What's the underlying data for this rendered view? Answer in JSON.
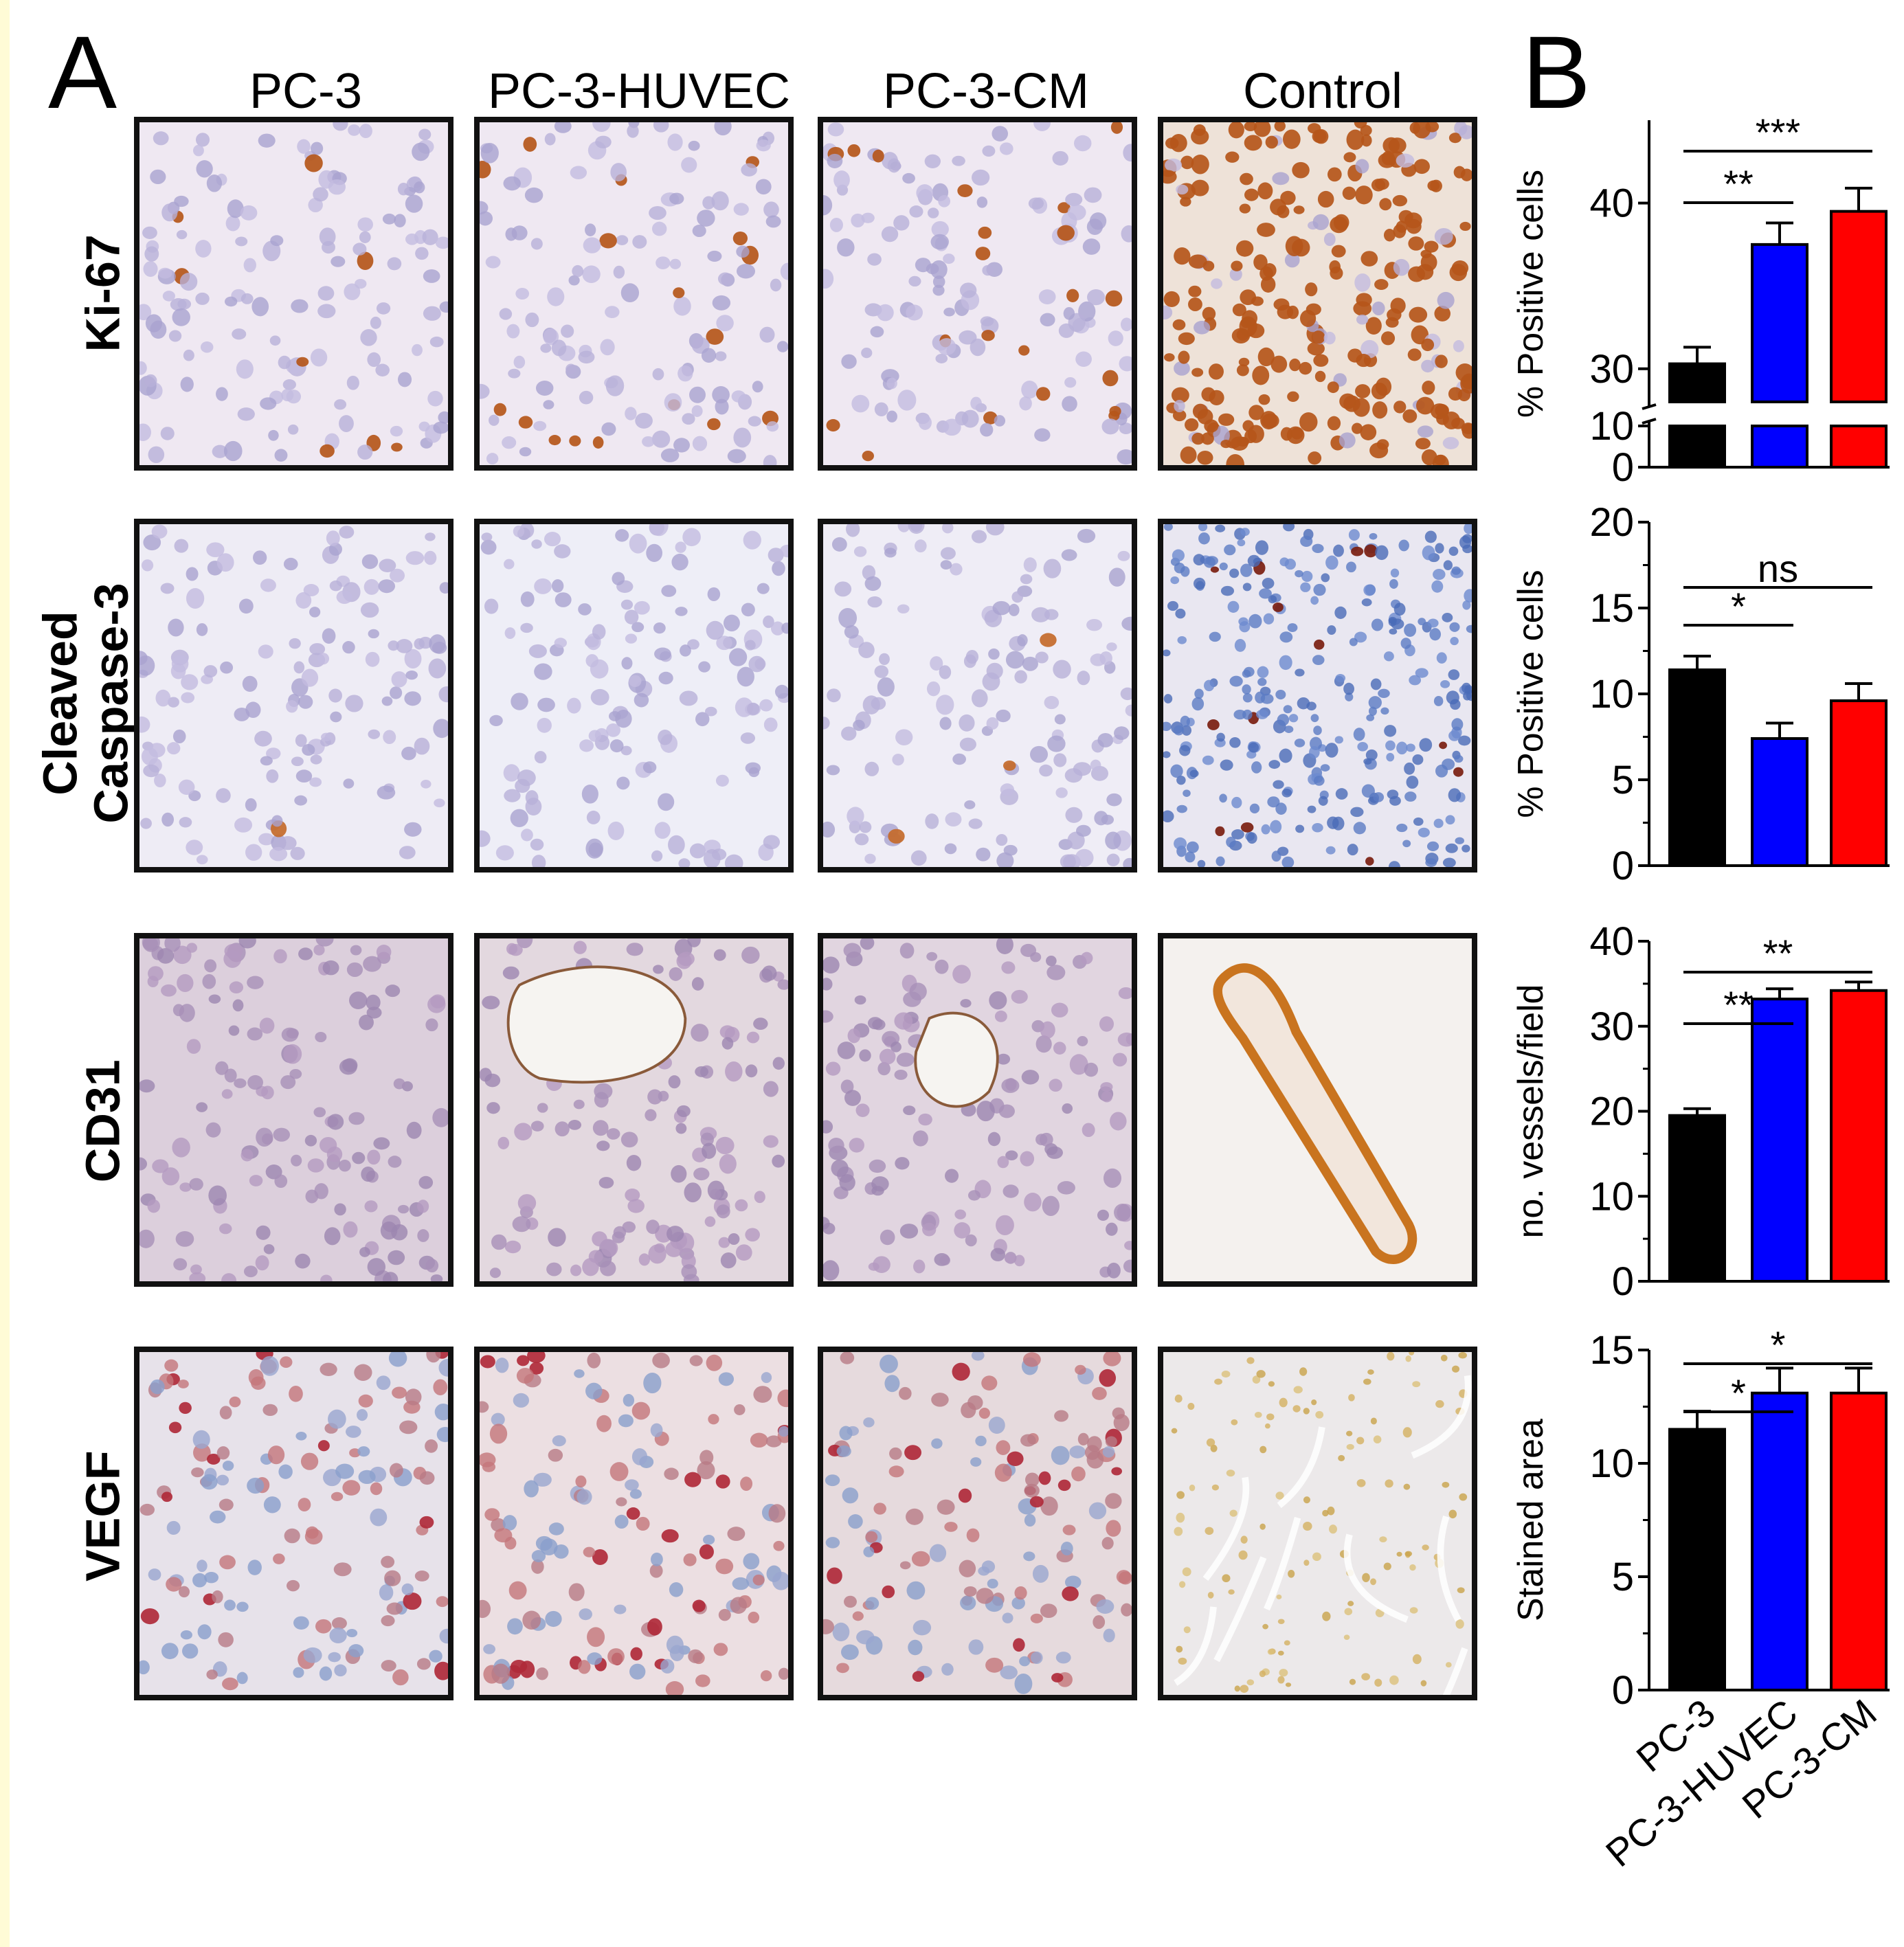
{
  "panel_letters": {
    "a": "A",
    "b": "B"
  },
  "columns": [
    "PC-3",
    "PC-3-HUVEC",
    "PC-3-CM",
    "Control"
  ],
  "rows": [
    {
      "label": "Ki-67",
      "label_line2": ""
    },
    {
      "label": "Cleaved",
      "label_line2": "Caspase-3"
    },
    {
      "label": "CD31",
      "label_line2": ""
    },
    {
      "label": "VEGF",
      "label_line2": ""
    }
  ],
  "colors": {
    "pc3": "#000000",
    "huvec": "#0000ff",
    "cm": "#ff0000"
  },
  "chart_data": [
    {
      "type": "bar",
      "categories": [
        "PC-3",
        "PC-3-HUVEC",
        "PC-3-CM"
      ],
      "values": [
        30.3,
        37.5,
        39.5
      ],
      "errors": [
        1.0,
        1.3,
        1.4
      ],
      "ylabel": "% Positive cells",
      "broken_axis": {
        "lower": [
          0,
          10
        ],
        "upper": [
          28,
          45
        ]
      },
      "yticks": [
        0,
        10,
        30,
        40
      ],
      "significance": [
        {
          "from": 0,
          "to": 1,
          "label": "**"
        },
        {
          "from": 0,
          "to": 2,
          "label": "***"
        }
      ]
    },
    {
      "type": "bar",
      "categories": [
        "PC-3",
        "PC-3-HUVEC",
        "PC-3-CM"
      ],
      "values": [
        11.4,
        7.4,
        9.6
      ],
      "errors": [
        0.8,
        0.9,
        1.0
      ],
      "ylabel": "% Positive cells",
      "ylim": [
        0,
        20
      ],
      "yticks": [
        0,
        5,
        10,
        15,
        20
      ],
      "significance": [
        {
          "from": 0,
          "to": 1,
          "label": "*"
        },
        {
          "from": 0,
          "to": 2,
          "label": "ns"
        }
      ]
    },
    {
      "type": "bar",
      "categories": [
        "PC-3",
        "PC-3-HUVEC",
        "PC-3-CM"
      ],
      "values": [
        19.5,
        33.2,
        34.2
      ],
      "errors": [
        0.8,
        1.2,
        1.0
      ],
      "ylabel": "no. vessels/field",
      "ylim": [
        0,
        40
      ],
      "yticks": [
        0,
        10,
        20,
        30,
        40
      ],
      "significance": [
        {
          "from": 0,
          "to": 1,
          "label": "**"
        },
        {
          "from": 0,
          "to": 2,
          "label": "**"
        }
      ]
    },
    {
      "type": "bar",
      "categories": [
        "PC-3",
        "PC-3-HUVEC",
        "PC-3-CM"
      ],
      "values": [
        11.5,
        13.1,
        13.1
      ],
      "errors": [
        0.8,
        1.1,
        1.1
      ],
      "ylabel": "Stained area",
      "ylim": [
        0,
        15
      ],
      "yticks": [
        0,
        5,
        10,
        15
      ],
      "significance": [
        {
          "from": 0,
          "to": 1,
          "label": "*"
        },
        {
          "from": 0,
          "to": 2,
          "label": "*"
        }
      ]
    }
  ]
}
